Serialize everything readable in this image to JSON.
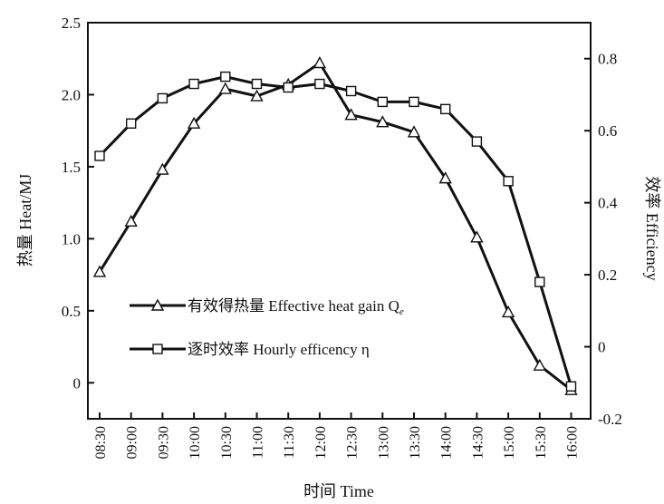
{
  "chart_data": {
    "type": "line",
    "categories": [
      "08:30",
      "09:00",
      "09:30",
      "10:00",
      "10:30",
      "11:00",
      "11:30",
      "12:00",
      "12:30",
      "13:00",
      "13:30",
      "14:00",
      "14:30",
      "15:00",
      "15:30",
      "16:00"
    ],
    "xlabel": "时间 Time",
    "ylabel_left": "热量 Heat/MJ",
    "ylabel_right": "效率 Efficiency",
    "ylim_left": [
      -0.25,
      2.5
    ],
    "ylim_right": [
      -0.2,
      0.9
    ],
    "yticks_left": [
      "0",
      "0.5",
      "1.0",
      "1.5",
      "2.0",
      "2.5"
    ],
    "yticks_right": [
      "-0.2",
      "0",
      "0.2",
      "0.4",
      "0.6",
      "0.8"
    ],
    "series": [
      {
        "name": "有效得热量 Effective heat gain Q",
        "name_sub": "e",
        "axis": "left",
        "marker": "triangle",
        "values": [
          0.77,
          1.12,
          1.48,
          1.8,
          2.04,
          1.99,
          2.07,
          2.22,
          1.86,
          1.81,
          1.74,
          1.42,
          1.01,
          0.49,
          0.12,
          -0.05
        ]
      },
      {
        "name": "逐时效率 Hourly efficency η",
        "axis": "right",
        "marker": "square",
        "values": [
          0.53,
          0.62,
          0.69,
          0.73,
          0.75,
          0.73,
          0.72,
          0.73,
          0.71,
          0.68,
          0.68,
          0.66,
          0.57,
          0.46,
          0.18,
          -0.11
        ]
      }
    ],
    "legend_position": "lower-left",
    "grid": false
  }
}
